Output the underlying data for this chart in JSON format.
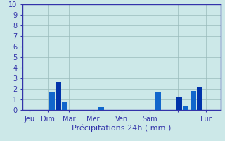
{
  "xlabel": "Précipitations 24h ( mm )",
  "ylim": [
    0,
    10
  ],
  "background_color": "#cce8e8",
  "grid_color": "#99bbbb",
  "axis_color": "#3333aa",
  "tick_label_color": "#3333aa",
  "xlabel_color": "#3333aa",
  "tick_fontsize": 7,
  "xlabel_fontsize": 8,
  "bar_width": 0.4,
  "bars": [
    {
      "x": 2.1,
      "value": 1.65,
      "color": "#1166cc"
    },
    {
      "x": 2.55,
      "value": 2.65,
      "color": "#0033aa"
    },
    {
      "x": 3.0,
      "value": 0.75,
      "color": "#1166cc"
    },
    {
      "x": 5.55,
      "value": 0.3,
      "color": "#1166cc"
    },
    {
      "x": 9.6,
      "value": 1.65,
      "color": "#1166cc"
    },
    {
      "x": 11.1,
      "value": 1.25,
      "color": "#0033aa"
    },
    {
      "x": 11.55,
      "value": 0.35,
      "color": "#1166cc"
    },
    {
      "x": 12.1,
      "value": 1.8,
      "color": "#1166cc"
    },
    {
      "x": 12.55,
      "value": 2.2,
      "color": "#0033aa"
    }
  ],
  "xtick_positions": [
    0.5,
    1.8,
    3.3,
    5.0,
    7.0,
    9.0,
    11.0,
    13.0
  ],
  "xtick_labels": [
    "Jeu",
    "Dim",
    "Mar",
    "Mer",
    "Ven",
    "Sam",
    "",
    "Lun"
  ],
  "xlim": [
    0,
    14
  ]
}
